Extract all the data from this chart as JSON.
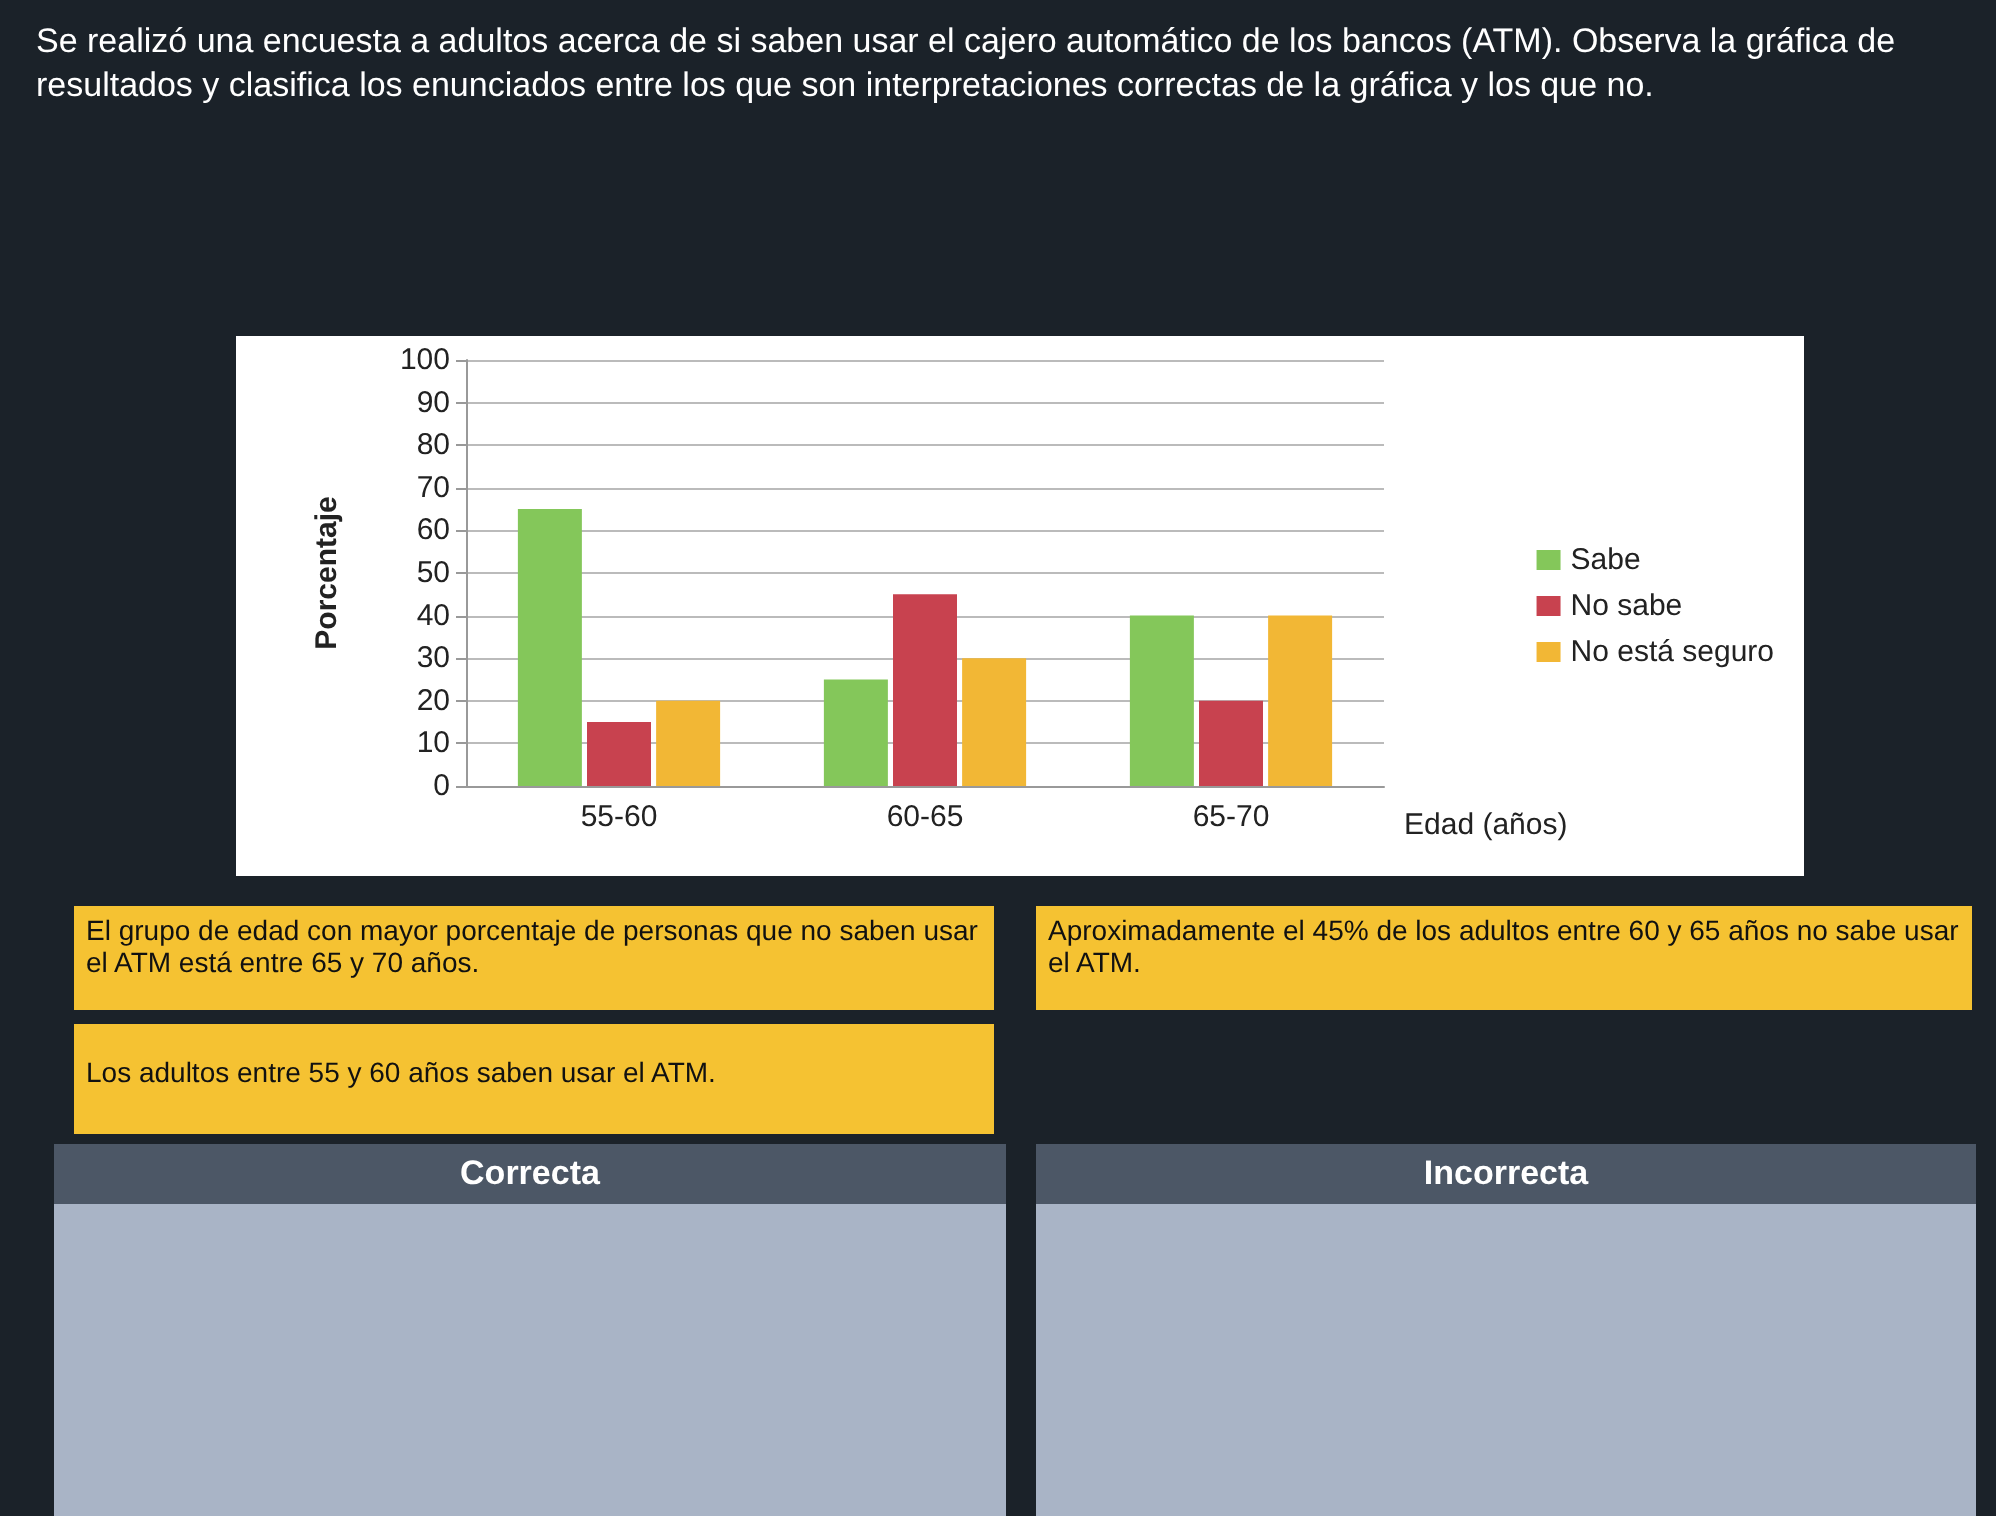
{
  "chart_data": {
    "type": "bar",
    "title": "Se realizó una encuesta a adultos acerca de si saben usar el cajero automático de los bancos (ATM). Observa la gráfica de resultados y clasifica los enunciados entre los que son interpretaciones correctas de la gráfica y los que no.",
    "xlabel": "Edad (años)",
    "ylabel": "Porcentaje",
    "categories": [
      "55-60",
      "60-65",
      "65-70"
    ],
    "series": [
      {
        "name": "Sabe",
        "color": "#84c75a",
        "values": [
          65,
          25,
          40
        ]
      },
      {
        "name": "No sabe",
        "color": "#c8424f",
        "values": [
          15,
          45,
          20
        ]
      },
      {
        "name": "No está seguro",
        "color": "#f2b735",
        "values": [
          20,
          30,
          40
        ]
      }
    ],
    "ylim": [
      0,
      100
    ],
    "yticks": [
      0,
      10,
      20,
      30,
      40,
      50,
      60,
      70,
      80,
      90,
      100
    ],
    "grid": "y",
    "legend": "right",
    "annotations": [
      "El grupo de edad con mayor porcentaje de personas que no saben usar el ATM está entre 65 y 70 años.",
      "Aproximadamente el 45% de los adultos entre 60 y 65 años no sabe usar el ATM.",
      "Los adultos entre 55 y 60 años saben usar el ATM.",
      "Correcta",
      "Incorrecta"
    ]
  }
}
